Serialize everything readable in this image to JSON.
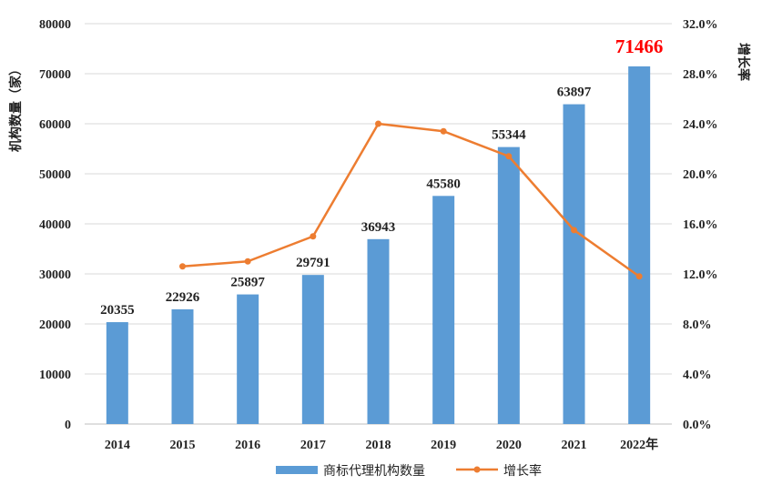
{
  "chart_data": {
    "type": "bar",
    "categories": [
      "2014",
      "2015",
      "2016",
      "2017",
      "2018",
      "2019",
      "2020",
      "2021",
      "2022年"
    ],
    "series": [
      {
        "name": "商标代理机构数量",
        "type": "bar",
        "axis": "left",
        "color": "#5b9bd5",
        "values": [
          20355,
          22926,
          25897,
          29791,
          36943,
          45580,
          55344,
          63897,
          71466
        ],
        "value_labels": [
          "20355",
          "22926",
          "25897",
          "29791",
          "36943",
          "45580",
          "55344",
          "63897",
          "71466"
        ],
        "highlight_index": 8,
        "highlight_color": "#ff0000"
      },
      {
        "name": "增长率",
        "type": "line",
        "axis": "right",
        "color": "#ed7d31",
        "values": [
          null,
          12.6,
          13.0,
          15.0,
          24.0,
          23.4,
          21.4,
          15.5,
          11.8
        ]
      }
    ],
    "ylabel": "机构数量（家）",
    "y2label": "增长率",
    "ylim": [
      0,
      80000
    ],
    "y2lim": [
      0,
      32
    ],
    "yticks": [
      "0",
      "10000",
      "20000",
      "30000",
      "40000",
      "50000",
      "60000",
      "70000",
      "80000"
    ],
    "y2ticks": [
      "0.0%",
      "4.0%",
      "8.0%",
      "12.0%",
      "16.0%",
      "20.0%",
      "24.0%",
      "28.0%",
      "32.0%"
    ],
    "grid": true,
    "legend_position": "bottom"
  }
}
